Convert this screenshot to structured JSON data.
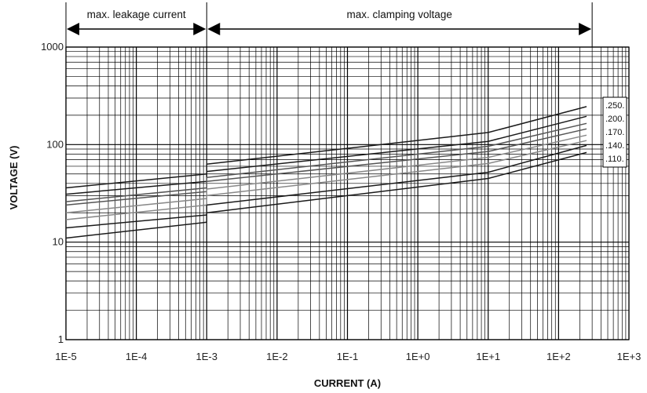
{
  "chart_data": {
    "type": "line",
    "xlabel": "CURRENT (A)",
    "ylabel": "VOLTAGE (V)",
    "x_scale": "log",
    "y_scale": "log",
    "xlim": [
      1e-05,
      1000
    ],
    "ylim": [
      1,
      1000
    ],
    "grid": true,
    "legend_placement": "right",
    "x_tick_labels": [
      "1E-5",
      "1E-4",
      "1E-3",
      "1E-2",
      "1E-1",
      "1E+0",
      "1E+1",
      "1E+2",
      "1E+3"
    ],
    "y_tick_labels": [
      "1",
      "10",
      "100",
      "1000"
    ],
    "annotations": [
      {
        "text": "max. leakage current",
        "x_from": 1e-05,
        "x_to": 0.001
      },
      {
        "text": "max. clamping voltage",
        "x_from": 0.001,
        "x_to": 300
      }
    ],
    "series_style": {
      "dark": "#1a1a1a",
      "mid": "#555555",
      "light": "#888888"
    },
    "series": [
      {
        "name": ".250.",
        "style": "dark",
        "leakage": {
          "x": [
            1e-05,
            0.001
          ],
          "y": [
            36,
            50
          ]
        },
        "clamping": {
          "x": [
            0.001,
            10,
            250
          ],
          "y": [
            63,
            133,
            245
          ]
        }
      },
      {
        "name": ".200.",
        "style": "dark",
        "leakage": {
          "x": [
            1e-05,
            0.001
          ],
          "y": [
            31,
            42
          ]
        },
        "clamping": {
          "x": [
            0.001,
            10,
            250
          ],
          "y": [
            53,
            108,
            195
          ]
        }
      },
      {
        "name": "",
        "style": "mid",
        "leakage": {
          "x": [
            1e-05,
            0.001
          ],
          "y": [
            26,
            36
          ]
        },
        "clamping": {
          "x": [
            0.001,
            10,
            250
          ],
          "y": [
            46,
            96,
            165
          ]
        }
      },
      {
        "name": ".170.",
        "style": "mid",
        "leakage": {
          "x": [
            1e-05,
            0.001
          ],
          "y": [
            24,
            33
          ]
        },
        "clamping": {
          "x": [
            0.001,
            10,
            250
          ],
          "y": [
            42,
            85,
            145
          ]
        }
      },
      {
        "name": "",
        "style": "light",
        "leakage": {
          "x": [
            1e-05,
            0.001
          ],
          "y": [
            20,
            28
          ]
        },
        "clamping": {
          "x": [
            0.001,
            10,
            250
          ],
          "y": [
            35,
            74,
            125
          ]
        }
      },
      {
        "name": ".140.",
        "style": "light",
        "leakage": {
          "x": [
            1e-05,
            0.001
          ],
          "y": [
            17,
            24
          ]
        },
        "clamping": {
          "x": [
            0.001,
            10,
            250
          ],
          "y": [
            30,
            64,
            110
          ]
        }
      },
      {
        "name": "",
        "style": "dark",
        "leakage": {
          "x": [
            1e-05,
            0.001
          ],
          "y": [
            14,
            19
          ]
        },
        "clamping": {
          "x": [
            0.001,
            10,
            250
          ],
          "y": [
            24,
            52,
            98
          ]
        }
      },
      {
        "name": ".110.",
        "style": "dark",
        "leakage": {
          "x": [
            1e-05,
            0.001
          ],
          "y": [
            11,
            16
          ]
        },
        "clamping": {
          "x": [
            0.001,
            10,
            250
          ],
          "y": [
            20,
            45,
            83
          ]
        }
      }
    ]
  }
}
